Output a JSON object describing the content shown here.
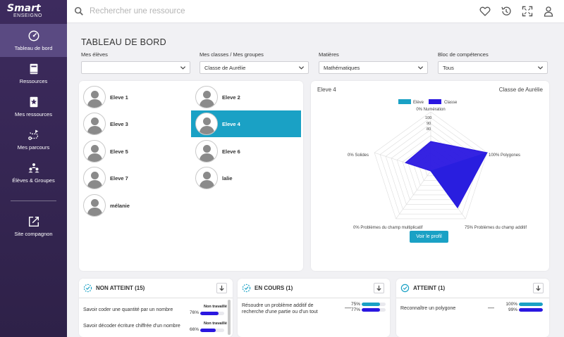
{
  "app": {
    "logo_line1": "Smart",
    "logo_line2": "ENSEIGNO"
  },
  "sidebar": {
    "items": [
      {
        "label": "Tableau de bord",
        "icon": "gauge-icon"
      },
      {
        "label": "Ressources",
        "icon": "book-icon"
      },
      {
        "label": "Mes ressources",
        "icon": "star-book-icon"
      },
      {
        "label": "Mes parcours",
        "icon": "route-icon"
      },
      {
        "label": "Élèves & Groupes",
        "icon": "group-icon"
      },
      {
        "label": "Site compagnon",
        "icon": "external-link-icon"
      }
    ]
  },
  "search": {
    "placeholder": "Rechercher une ressource"
  },
  "page": {
    "title": "TABLEAU DE BORD"
  },
  "filters": {
    "students": {
      "label": "Mes élèves",
      "value": ""
    },
    "classes": {
      "label": "Mes classes / Mes groupes",
      "value": "Classe de Aurélie"
    },
    "subjects": {
      "label": "Matières",
      "value": "Mathématiques"
    },
    "skills": {
      "label": "Bloc de compétences",
      "value": "Tous"
    }
  },
  "students": [
    "Eleve 1",
    "Eleve 2",
    "Eleve 3",
    "Eleve 4",
    "Eleve 5",
    "Eleve 6",
    "Eleve 7",
    "lalie",
    "mélanie"
  ],
  "selected_student": "Eleve 4",
  "radar": {
    "student_title": "Eleve 4",
    "class_title": "Classe de Aurélie",
    "legend": [
      "Elève",
      "Classe"
    ],
    "scale_labels": [
      "100",
      "90",
      "80"
    ],
    "axes": [
      {
        "label": "0% Numération"
      },
      {
        "label": "100% Polygones"
      },
      {
        "label": "75% Problèmes du champ additif"
      },
      {
        "label": "0% Problèmes du champ multiplicatif"
      },
      {
        "label": "0% Solides"
      }
    ],
    "button": "Voir le profil",
    "colors": {
      "eleve": "#1aa1c5",
      "classe": "#2a17e0"
    }
  },
  "chart_data": {
    "type": "radar",
    "categories": [
      "Numération",
      "Polygones",
      "Problèmes du champ additif",
      "Problèmes du champ multiplicatif",
      "Solides"
    ],
    "series": [
      {
        "name": "Elève",
        "values": [
          0,
          100,
          75,
          0,
          0
        ]
      },
      {
        "name": "Classe",
        "values": [
          50,
          100,
          77,
          0,
          45
        ]
      }
    ],
    "range": [
      0,
      100
    ]
  },
  "cards": {
    "non_atteint": {
      "title": "NON ATTEINT (15)",
      "rows": [
        {
          "label": "Savoir coder une quantité par un nombre",
          "status": "Non travaillé",
          "pct": "76%",
          "value": 76
        },
        {
          "label": "Savoir décoder écriture chiffrée d'un nombre",
          "status": "Non travaillé",
          "pct": "66%",
          "value": 66
        }
      ]
    },
    "en_cours": {
      "title": "EN COURS (1)",
      "rows": [
        {
          "label": "Résoudre un problème additif de recherche d'une partie ou d'un tout",
          "dash": "—",
          "pct1": "75%",
          "v1": 75,
          "pct2": "77%",
          "v2": 77
        }
      ]
    },
    "atteint": {
      "title": "ATTEINT (1)",
      "rows": [
        {
          "label": "Reconnaître un polygone",
          "dash": "—",
          "pct1": "100%",
          "v1": 100,
          "pct2": "99%",
          "v2": 99
        }
      ]
    }
  }
}
